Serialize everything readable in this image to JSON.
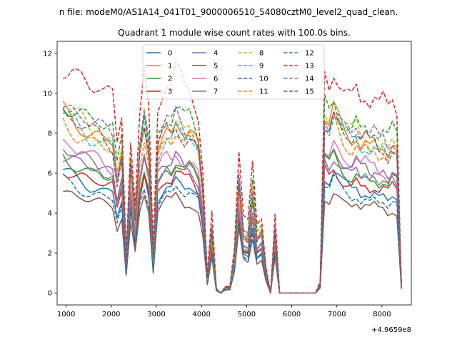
{
  "chart_data": {
    "type": "line",
    "suptitle": "n file: modeM0/AS1A14_041T01_9000006510_54080cztM0_level2_quad_clean.",
    "title": "Quadrant 1 module wise count rates with 100.0s bins.",
    "xlabel": "",
    "ylabel": "",
    "x_offset_label": "+4.9659e8",
    "xlim": [
      800,
      8650
    ],
    "ylim": [
      -0.6,
      12.6
    ],
    "x_ticks": [
      1000,
      2000,
      3000,
      4000,
      5000,
      6000,
      7000,
      8000
    ],
    "x_tick_labels": [
      "1000",
      "2000",
      "3000",
      "4000",
      "5000",
      "6000",
      "7000",
      "8000"
    ],
    "y_ticks": [
      0,
      2,
      4,
      6,
      8,
      10,
      12
    ],
    "y_tick_labels": [
      "0",
      "2",
      "4",
      "6",
      "8",
      "10",
      "12"
    ],
    "grid": false,
    "legend": {
      "position": "upper center",
      "ncol": 4
    },
    "x": [
      930,
      1030,
      1130,
      1230,
      1330,
      1430,
      1530,
      1630,
      1730,
      1830,
      1930,
      2030,
      2130,
      2230,
      2330,
      2430,
      2530,
      2630,
      2730,
      2830,
      2930,
      3030,
      3130,
      3230,
      3330,
      3430,
      3530,
      3630,
      3730,
      3830,
      3930,
      4030,
      4130,
      4230,
      4330,
      4430,
      4530,
      4630,
      4730,
      4830,
      4930,
      5030,
      5130,
      5230,
      5330,
      5430,
      5530,
      5630,
      5730,
      5830,
      5930,
      6030,
      6130,
      6230,
      6330,
      6430,
      6530,
      6630,
      6730,
      6830,
      6930,
      7030,
      7130,
      7230,
      7330,
      7430,
      7530,
      7630,
      7730,
      7830,
      7930,
      8030,
      8130,
      8230,
      8330,
      8430
    ],
    "base_profile": [
      1.0,
      0.98,
      0.97,
      0.95,
      0.94,
      0.92,
      0.9,
      0.89,
      0.88,
      0.86,
      0.85,
      0.84,
      0.64,
      0.78,
      0.18,
      0.7,
      0.4,
      0.78,
      0.95,
      0.8,
      0.2,
      0.8,
      0.86,
      0.9,
      0.88,
      0.95,
      0.92,
      0.88,
      0.9,
      0.86,
      0.8,
      0.55,
      0.08,
      0.35,
      0.02,
      0.0,
      0.03,
      0.03,
      0.2,
      0.6,
      0.32,
      0.3,
      0.55,
      0.3,
      0.34,
      0.12,
      0.0,
      0.35,
      0.0,
      0.0,
      0.0,
      0.0,
      0.0,
      0.0,
      0.0,
      0.0,
      0.0,
      0.05,
      0.96,
      0.92,
      1.0,
      0.95,
      0.9,
      0.88,
      0.86,
      0.9,
      0.84,
      0.86,
      0.82,
      0.84,
      0.8,
      0.82,
      0.78,
      0.83,
      0.8,
      0.04
    ],
    "series": [
      {
        "name": "0",
        "color": "#1f77b4",
        "dash": false,
        "level": 6.0
      },
      {
        "name": "1",
        "color": "#ff7f0e",
        "dash": false,
        "level": 9.0
      },
      {
        "name": "2",
        "color": "#2ca02c",
        "dash": false,
        "level": 6.8
      },
      {
        "name": "3",
        "color": "#d62728",
        "dash": false,
        "level": 6.3
      },
      {
        "name": "4",
        "color": "#9467bd",
        "dash": false,
        "level": 7.0
      },
      {
        "name": "5",
        "color": "#8c564b",
        "dash": false,
        "level": 5.1
      },
      {
        "name": "6",
        "color": "#e377c2",
        "dash": false,
        "level": 7.5
      },
      {
        "name": "7",
        "color": "#7f7f7f",
        "dash": false,
        "level": 7.2
      },
      {
        "name": "8",
        "color": "#bcbd22",
        "dash": true,
        "level": 9.2
      },
      {
        "name": "9",
        "color": "#17becf",
        "dash": true,
        "level": 8.8
      },
      {
        "name": "10",
        "color": "#1f77b4",
        "dash": true,
        "level": 5.6
      },
      {
        "name": "11",
        "color": "#ff7f0e",
        "dash": true,
        "level": 8.5
      },
      {
        "name": "12",
        "color": "#2ca02c",
        "dash": true,
        "level": 9.7
      },
      {
        "name": "13",
        "color": "#d62728",
        "dash": true,
        "level": 11.5
      },
      {
        "name": "14",
        "color": "#9467bd",
        "dash": true,
        "level": 9.4
      },
      {
        "name": "15",
        "color": "#8c564b",
        "dash": true,
        "level": 8.9
      }
    ]
  }
}
